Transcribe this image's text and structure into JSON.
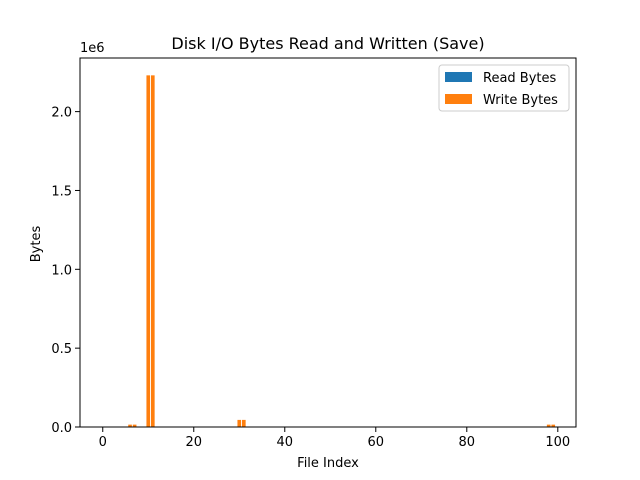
{
  "chart_data": {
    "type": "bar",
    "title": "Disk I/O Bytes Read and Written (Save)",
    "xlabel": "File Index",
    "ylabel": "Bytes",
    "y_offset_label": "1e6",
    "xlim": [
      -5,
      104
    ],
    "ylim": [
      0,
      2340000
    ],
    "x_ticks": [
      0,
      20,
      40,
      60,
      80,
      100
    ],
    "y_ticks": [
      0.0,
      0.5,
      1.0,
      1.5,
      2.0
    ],
    "y_tick_scale": 1000000,
    "legend_position": "upper right",
    "grid": false,
    "series": [
      {
        "name": "Read Bytes",
        "color": "#1f77b4",
        "points": []
      },
      {
        "name": "Write Bytes",
        "color": "#ff7f0e",
        "points": [
          {
            "x": 6,
            "y": 15000
          },
          {
            "x": 7,
            "y": 15000
          },
          {
            "x": 10,
            "y": 2230000
          },
          {
            "x": 11,
            "y": 2230000
          },
          {
            "x": 30,
            "y": 45000
          },
          {
            "x": 31,
            "y": 45000
          },
          {
            "x": 98,
            "y": 15000
          },
          {
            "x": 99,
            "y": 15000
          }
        ]
      }
    ]
  }
}
